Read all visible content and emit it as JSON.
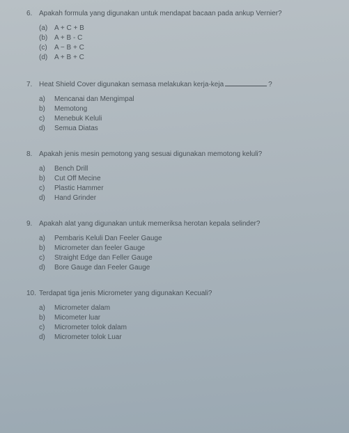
{
  "questions": [
    {
      "num": "6.",
      "text": "Apakah formula yang digunakan untuk mendapat bacaan pada ankup Vernier?",
      "options": [
        {
          "label": "(a)",
          "text": "A + C + B"
        },
        {
          "label": "(b)",
          "text": "A + B - C"
        },
        {
          "label": "(c)",
          "text": "A − B + C"
        },
        {
          "label": "(d)",
          "text": "A + B + C"
        }
      ]
    },
    {
      "num": "7.",
      "text_pre": "Heat Shield Cover digunakan semasa melakukan kerja-keja",
      "text_post": "?",
      "has_blank": true,
      "options": [
        {
          "label": "a)",
          "text": "Mencanai dan Mengimpal"
        },
        {
          "label": "b)",
          "text": "Memotong"
        },
        {
          "label": "c)",
          "text": "Menebuk Keluli"
        },
        {
          "label": "d)",
          "text": "Semua Diatas"
        }
      ]
    },
    {
      "num": "8.",
      "text": "Apakah jenis mesin pemotong yang sesuai digunakan memotong keluli?",
      "options": [
        {
          "label": "a)",
          "text": "Bench Drill"
        },
        {
          "label": "b)",
          "text": "Cut Off Mecine"
        },
        {
          "label": "c)",
          "text": "Plastic Hammer"
        },
        {
          "label": "d)",
          "text": "Hand Grinder"
        }
      ]
    },
    {
      "num": "9.",
      "text": "Apakah alat yang digunakan untuk memeriksa herotan kepala selinder?",
      "options": [
        {
          "label": "a)",
          "text": "Pembaris Keluli Dan Feeler Gauge"
        },
        {
          "label": "b)",
          "text": "Micrometer dan feeler Gauge"
        },
        {
          "label": "c)",
          "text": "Straight Edge dan Feller Gauge"
        },
        {
          "label": "d)",
          "text": "Bore Gauge dan Feeler Gauge"
        }
      ]
    },
    {
      "num": "10.",
      "text": "Terdapat tiga jenis Micrometer yang digunakan Kecuali?",
      "options": [
        {
          "label": "a)",
          "text": "Micrometer dalam"
        },
        {
          "label": "b)",
          "text": "Micometer luar"
        },
        {
          "label": "c)",
          "text": "Micrometer tolok dalam"
        },
        {
          "label": "d)",
          "text": "Micrometer tolok Luar"
        }
      ]
    }
  ]
}
